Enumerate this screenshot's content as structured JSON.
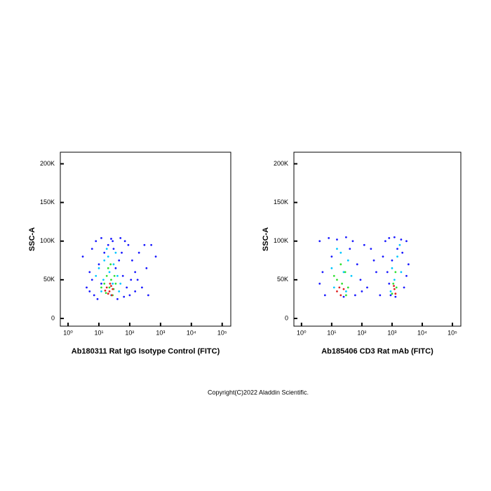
{
  "chart_data": [
    {
      "type": "scatter",
      "x_label": "Ab180311 Rat IgG Isotype Control (FITC)",
      "y_label": "SSC-A",
      "xscale": "log",
      "xlim": [
        0.56,
        190000
      ],
      "ylim": [
        -10000,
        215000
      ],
      "xticks": [
        {
          "value": 1,
          "label": "10⁰"
        },
        {
          "value": 10,
          "label": "10¹"
        },
        {
          "value": 100,
          "label": "10²"
        },
        {
          "value": 1000,
          "label": "10³"
        },
        {
          "value": 10000,
          "label": "10⁴"
        },
        {
          "value": 100000,
          "label": "10⁵"
        }
      ],
      "yticks": [
        0,
        {
          "value": 50000,
          "label": "50K"
        },
        {
          "value": 100000,
          "label": "100K"
        },
        {
          "value": 150000,
          "label": "150K"
        },
        {
          "value": 200000,
          "label": "200K"
        }
      ],
      "series": [
        {
          "color": "#1a1aff",
          "x": [
            6,
            8,
            12,
            25,
            50,
            70,
            5,
            4,
            7,
            10,
            15,
            30,
            45,
            60,
            80,
            100,
            150,
            200,
            300,
            500,
            250,
            400,
            120,
            90,
            6,
            9,
            40,
            65,
            180,
            350,
            3,
            5,
            20,
            35,
            55,
            12,
            700,
            150,
            110,
            28
          ],
          "y": [
            90000,
            100000,
            104000,
            103000,
            104000,
            100000,
            60000,
            40000,
            30000,
            70000,
            85000,
            90000,
            75000,
            55000,
            40000,
            30000,
            60000,
            85000,
            95000,
            95000,
            40000,
            30000,
            75000,
            95000,
            50000,
            25000,
            25000,
            28000,
            50000,
            65000,
            80000,
            35000,
            95000,
            65000,
            85000,
            45000,
            80000,
            35000,
            50000,
            100000
          ]
        },
        {
          "color": "#00c8ff",
          "x": [
            10,
            15,
            20,
            30,
            40,
            12,
            25,
            50,
            18,
            35,
            8,
            45,
            22,
            14,
            28
          ],
          "y": [
            65000,
            75000,
            80000,
            70000,
            55000,
            35000,
            30000,
            45000,
            90000,
            85000,
            55000,
            35000,
            60000,
            50000,
            45000
          ]
        },
        {
          "color": "#30e030",
          "x": [
            15,
            18,
            22,
            25,
            30,
            12,
            20,
            35,
            28,
            17,
            24,
            32
          ],
          "y": [
            45000,
            55000,
            40000,
            50000,
            38000,
            40000,
            65000,
            45000,
            30000,
            33000,
            70000,
            55000
          ]
        },
        {
          "color": "#e02020",
          "x": [
            18,
            22,
            25,
            20,
            28,
            16,
            23,
            26
          ],
          "y": [
            40000,
            35000,
            42000,
            32000,
            38000,
            36000,
            45000,
            30000
          ]
        }
      ]
    },
    {
      "type": "scatter",
      "x_label": "Ab185406 CD3 Rat mAb (FITC)",
      "y_label": "SSC-A",
      "xscale": "log",
      "xlim": [
        0.56,
        190000
      ],
      "ylim": [
        -10000,
        215000
      ],
      "xticks": [
        {
          "value": 1,
          "label": "10⁰"
        },
        {
          "value": 10,
          "label": "10¹"
        },
        {
          "value": 100,
          "label": "10²"
        },
        {
          "value": 1000,
          "label": "10³"
        },
        {
          "value": 10000,
          "label": "10⁴"
        },
        {
          "value": 100000,
          "label": "10⁵"
        }
      ],
      "yticks": [
        0,
        {
          "value": 50000,
          "label": "50K"
        },
        {
          "value": 100000,
          "label": "100K"
        },
        {
          "value": 150000,
          "label": "150K"
        },
        {
          "value": 200000,
          "label": "200K"
        }
      ],
      "series": [
        {
          "color": "#1a1aff",
          "x": [
            4,
            8,
            15,
            30,
            50,
            5,
            6,
            10,
            40,
            70,
            90,
            100,
            150,
            200,
            300,
            400,
            500,
            600,
            800,
            1200,
            2000,
            3000,
            700,
            900,
            2500,
            3500,
            1500,
            1000,
            4,
            60,
            25,
            800,
            2200,
            1300,
            3000,
            250,
            120
          ],
          "y": [
            100000,
            104000,
            102000,
            105000,
            100000,
            60000,
            30000,
            80000,
            90000,
            70000,
            50000,
            35000,
            40000,
            90000,
            60000,
            30000,
            80000,
            100000,
            104000,
            105000,
            102000,
            100000,
            60000,
            30000,
            40000,
            70000,
            90000,
            75000,
            45000,
            30000,
            28000,
            45000,
            85000,
            28000,
            55000,
            75000,
            95000
          ]
        },
        {
          "color": "#00c8ff",
          "x": [
            10,
            20,
            35,
            45,
            12,
            30,
            15,
            1000,
            1500,
            1200,
            2000,
            900,
            1800,
            25
          ],
          "y": [
            65000,
            85000,
            75000,
            55000,
            40000,
            35000,
            90000,
            65000,
            80000,
            50000,
            60000,
            35000,
            95000,
            60000
          ]
        },
        {
          "color": "#30e030",
          "x": [
            15,
            22,
            28,
            35,
            12,
            20,
            1100,
            1400,
            1300,
            1000,
            30
          ],
          "y": [
            50000,
            45000,
            60000,
            40000,
            55000,
            70000,
            45000,
            40000,
            60000,
            32000,
            30000
          ]
        },
        {
          "color": "#e02020",
          "x": [
            18,
            25,
            20,
            15,
            1200,
            1300,
            1150
          ],
          "y": [
            40000,
            38000,
            30000,
            35000,
            38000,
            32000,
            42000
          ]
        }
      ]
    }
  ],
  "copyright": "Copyright(C)2022 Aladdin Scientific."
}
